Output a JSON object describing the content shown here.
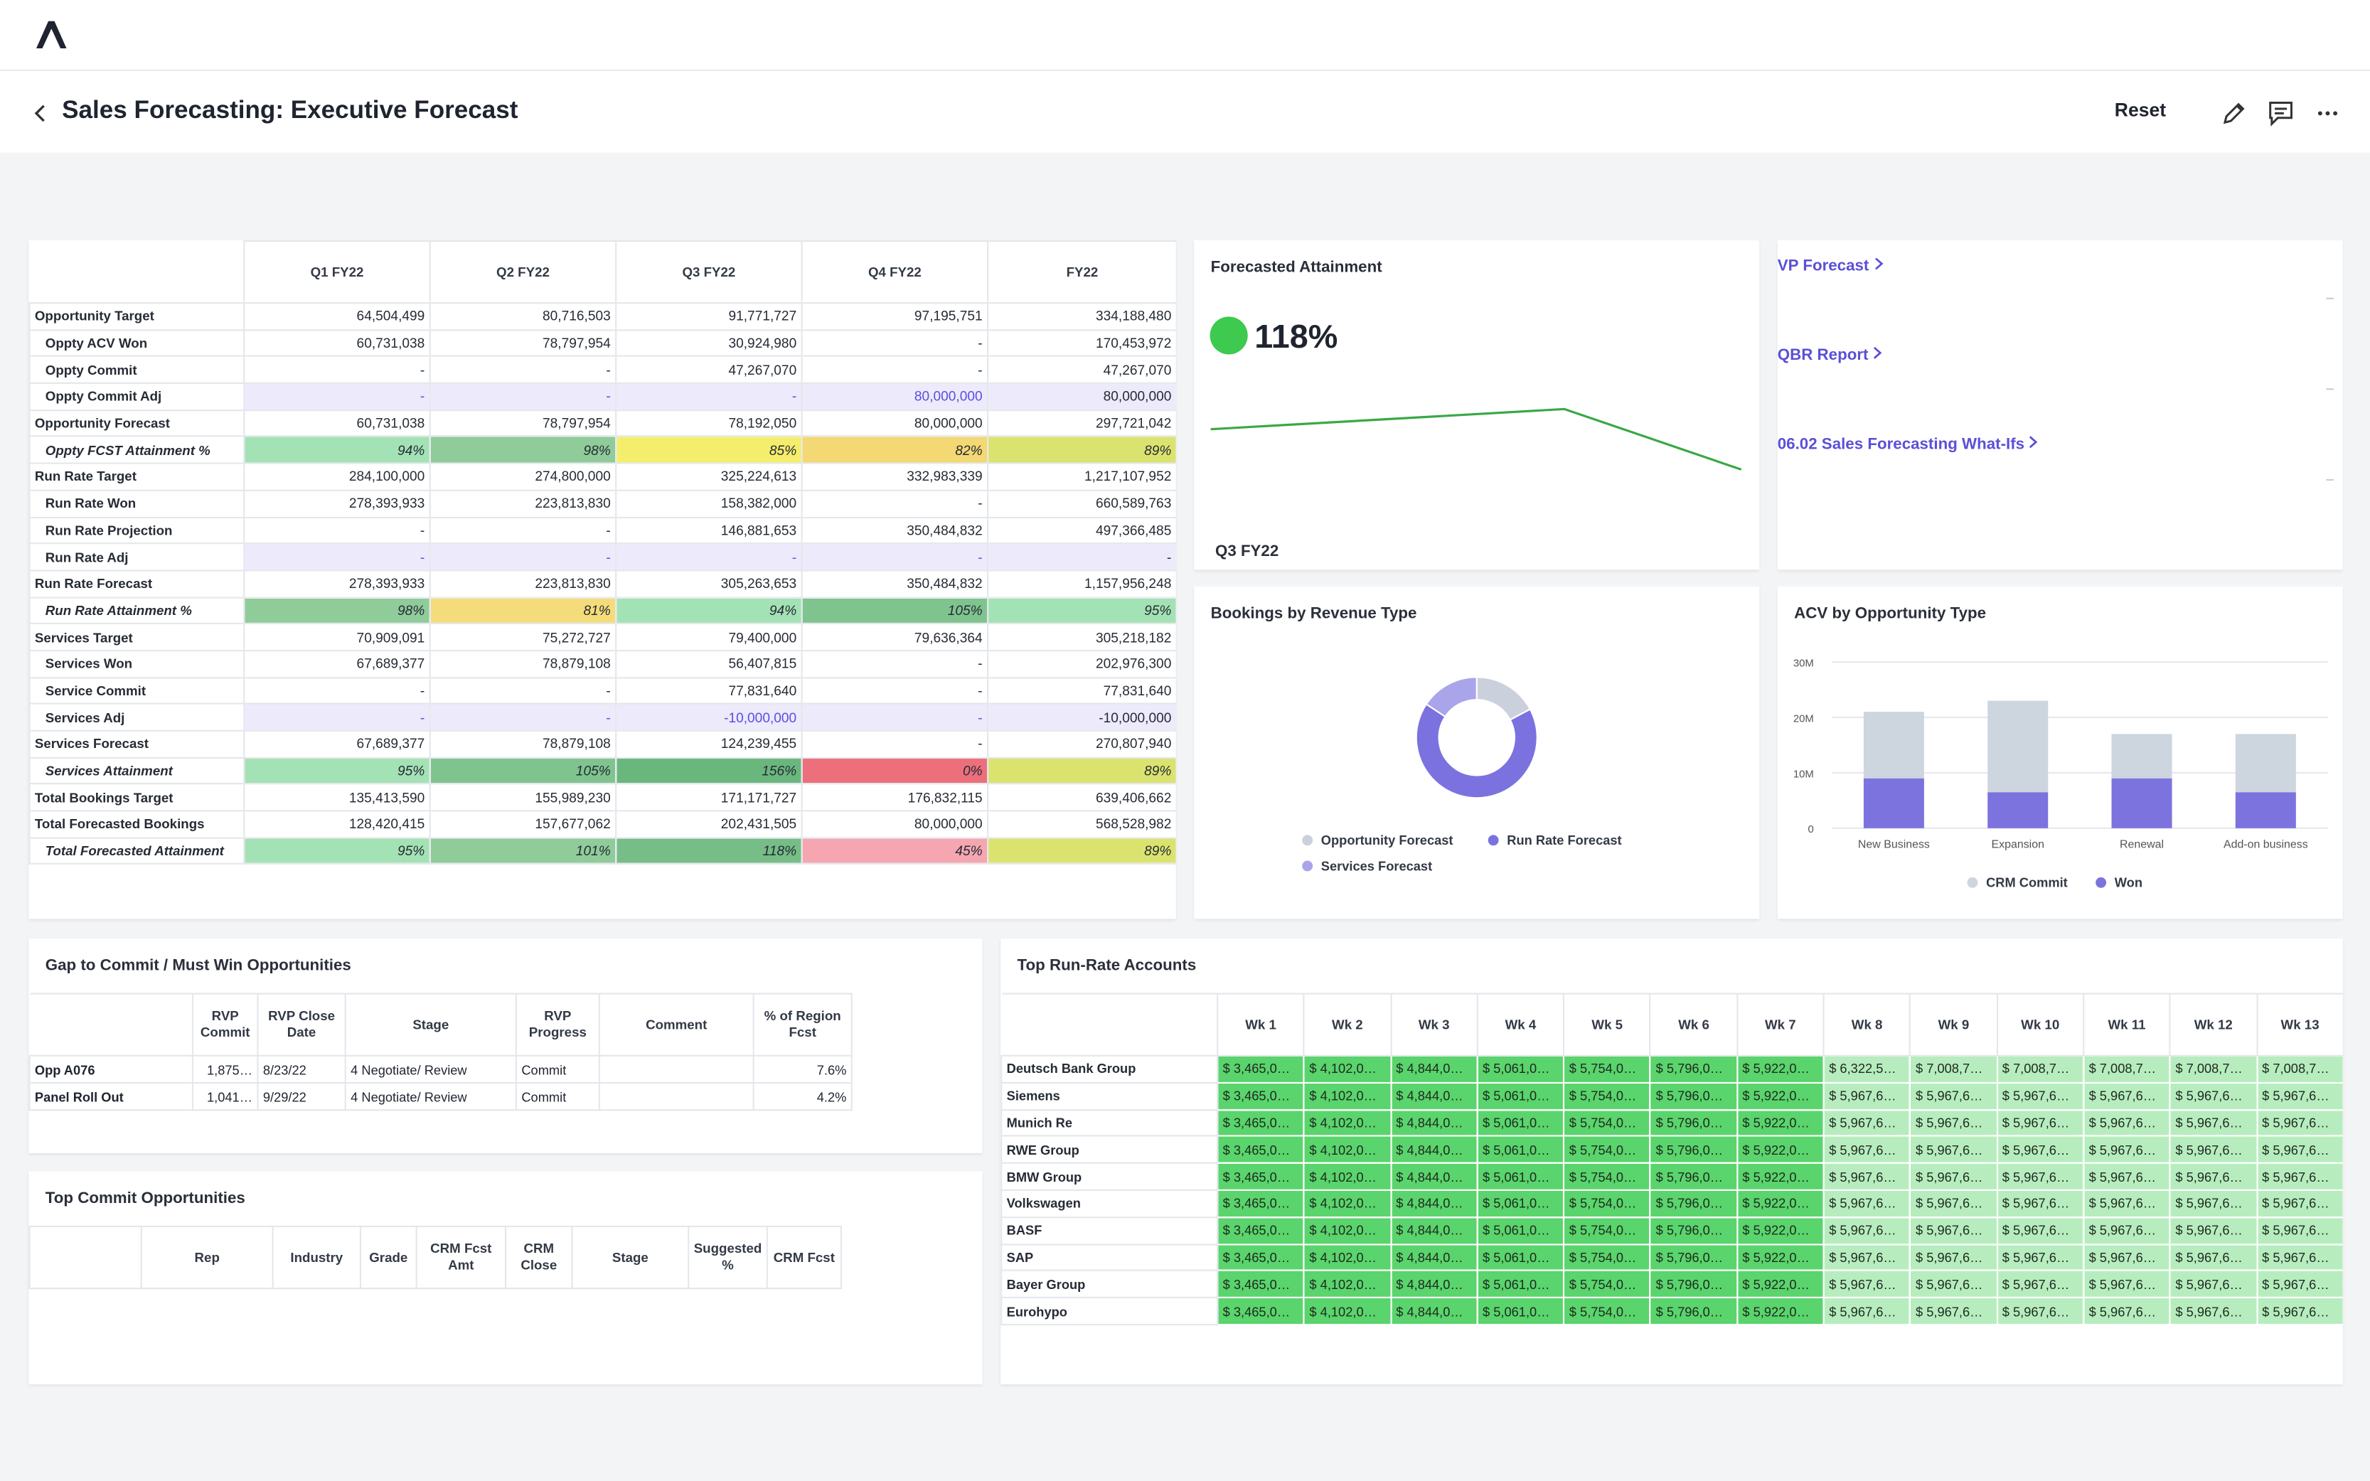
{
  "header": {
    "title": "Sales Forecasting: Executive Forecast",
    "reset": "Reset"
  },
  "forecast_table": {
    "columns": [
      "Q1 FY22",
      "Q2 FY22",
      "Q3 FY22",
      "Q4 FY22",
      "FY22"
    ],
    "rows": [
      {
        "label": "Opportunity Target",
        "style": "bold",
        "cells": [
          "64,504,499",
          "80,716,503",
          "91,771,727",
          "97,195,751",
          "334,188,480"
        ]
      },
      {
        "label": "Oppty ACV Won",
        "style": "sub",
        "cells": [
          "60,731,038",
          "78,797,954",
          "30,924,980",
          "-",
          "170,453,972"
        ]
      },
      {
        "label": "Oppty Commit",
        "style": "sub",
        "cells": [
          "-",
          "-",
          "47,267,070",
          "-",
          "47,267,070"
        ]
      },
      {
        "label": "Oppty Commit Adj",
        "style": "adj",
        "cells": [
          "-",
          "-",
          "-",
          "80,000,000",
          "80,000,000"
        ]
      },
      {
        "label": "Opportunity Forecast",
        "style": "bold",
        "cells": [
          "60,731,038",
          "78,797,954",
          "78,192,050",
          "80,000,000",
          "297,721,042"
        ]
      },
      {
        "label": "Oppty FCST Attainment %",
        "style": "pct",
        "cells": [
          "94%",
          "98%",
          "85%",
          "82%",
          "89%"
        ],
        "colors": [
          "#a3e2b4",
          "#8fcc9a",
          "#f4ee6c",
          "#f3d873",
          "#dbe36f"
        ]
      },
      {
        "label": "Run Rate Target",
        "style": "bold",
        "cells": [
          "284,100,000",
          "274,800,000",
          "325,224,613",
          "332,983,339",
          "1,217,107,952"
        ]
      },
      {
        "label": "Run Rate Won",
        "style": "sub",
        "cells": [
          "278,393,933",
          "223,813,830",
          "158,382,000",
          "-",
          "660,589,763"
        ]
      },
      {
        "label": "Run Rate Projection",
        "style": "sub",
        "cells": [
          "-",
          "-",
          "146,881,653",
          "350,484,832",
          "497,366,485"
        ]
      },
      {
        "label": "Run Rate Adj",
        "style": "adj",
        "cells": [
          "-",
          "-",
          "-",
          "-",
          "-"
        ]
      },
      {
        "label": "Run Rate Forecast",
        "style": "bold",
        "cells": [
          "278,393,933",
          "223,813,830",
          "305,263,653",
          "350,484,832",
          "1,157,956,248"
        ]
      },
      {
        "label": "Run Rate Attainment %",
        "style": "pct",
        "cells": [
          "98%",
          "81%",
          "94%",
          "105%",
          "95%"
        ],
        "colors": [
          "#8fcc9a",
          "#f5dc7a",
          "#a3e2b4",
          "#7fc48f",
          "#a3e2b4"
        ]
      },
      {
        "label": "Services Target",
        "style": "bold",
        "cells": [
          "70,909,091",
          "75,272,727",
          "79,400,000",
          "79,636,364",
          "305,218,182"
        ]
      },
      {
        "label": "Services Won",
        "style": "sub",
        "cells": [
          "67,689,377",
          "78,879,108",
          "56,407,815",
          "-",
          "202,976,300"
        ]
      },
      {
        "label": "Service Commit",
        "style": "sub",
        "cells": [
          "-",
          "-",
          "77,831,640",
          "-",
          "77,831,640"
        ]
      },
      {
        "label": "Services Adj",
        "style": "adj",
        "cells": [
          "-",
          "-",
          "-10,000,000",
          "-",
          "-10,000,000"
        ]
      },
      {
        "label": "Services Forecast",
        "style": "bold",
        "cells": [
          "67,689,377",
          "78,879,108",
          "124,239,455",
          "-",
          "270,807,940"
        ]
      },
      {
        "label": "Services Attainment",
        "style": "pct",
        "cells": [
          "95%",
          "105%",
          "156%",
          "0%",
          "89%"
        ],
        "colors": [
          "#a3e2b4",
          "#7fc48f",
          "#6ab77e",
          "#ec6f7b",
          "#dbe36f"
        ]
      },
      {
        "label": "Total Bookings Target",
        "style": "bold",
        "cells": [
          "135,413,590",
          "155,989,230",
          "171,171,727",
          "176,832,115",
          "639,406,662"
        ]
      },
      {
        "label": "Total Forecasted Bookings",
        "style": "bold",
        "cells": [
          "128,420,415",
          "157,677,062",
          "202,431,505",
          "80,000,000",
          "568,528,982"
        ]
      },
      {
        "label": "Total Forecasted Attainment",
        "style": "pct",
        "cells": [
          "95%",
          "101%",
          "118%",
          "45%",
          "89%"
        ],
        "colors": [
          "#a3e2b4",
          "#8fcc9a",
          "#76bd87",
          "#f5a6b0",
          "#dbe36f"
        ]
      }
    ]
  },
  "chart_data": [
    {
      "type": "line",
      "title": "Forecasted Attainment",
      "kpi": "118%",
      "kpi_color": "#3ec94f",
      "x_label": "Q3 FY22",
      "values": [
        97,
        102,
        107,
        77
      ],
      "ylim": [
        70,
        115
      ],
      "color": "#3aa845"
    },
    {
      "type": "pie",
      "title": "Bookings by Revenue Type",
      "donut": true,
      "categories": [
        "Opportunity Forecast",
        "Run Rate Forecast",
        "Services Forecast"
      ],
      "values": [
        297721042,
        1157956248,
        270807940
      ],
      "colors": [
        "#cad1dc",
        "#7b72e0",
        "#aaa4ea"
      ]
    },
    {
      "type": "bar",
      "title": "ACV by Opportunity Type",
      "stacked": true,
      "grid": true,
      "categories": [
        "New Business",
        "Expansion",
        "Renewal",
        "Add-on business"
      ],
      "series": [
        {
          "name": "CRM Commit",
          "color": "#cdd5de",
          "values": [
            12000000,
            16500000,
            8000000,
            10500000
          ]
        },
        {
          "name": "Won",
          "color": "#7d73de",
          "values": [
            9000000,
            6500000,
            9000000,
            6500000
          ]
        }
      ],
      "ylim": [
        0,
        30000000
      ],
      "yticks": [
        0,
        {
          "value": 10000000,
          "label": "10M"
        },
        {
          "value": 20000000,
          "label": "20M"
        },
        {
          "value": 30000000,
          "label": "30M"
        }
      ]
    }
  ],
  "links": [
    "VP Forecast",
    "QBR Report",
    "06.02 Sales Forecasting What-Ifs"
  ],
  "gap_table": {
    "title": "Gap to Commit / Must Win Opportunities",
    "columns": [
      "RVP Commit",
      "RVP Close Date",
      "Stage",
      "RVP Progress",
      "Comment",
      "% of Region Fcst"
    ],
    "rows": [
      {
        "label": "Opp A076",
        "cells": [
          "1,875…",
          "8/23/22",
          "4 Negotiate/ Review",
          "Commit",
          null,
          "7.6%"
        ]
      },
      {
        "label": "Panel Roll Out",
        "cells": [
          "1,041…",
          "9/29/22",
          "4 Negotiate/ Review",
          "Commit",
          null,
          "4.2%"
        ]
      }
    ]
  },
  "commit_table": {
    "title": "Top Commit Opportunities",
    "columns": [
      null,
      "Rep",
      "Industry",
      "Grade",
      "CRM Fcst Amt",
      "CRM Close",
      "Stage",
      "Suggested %",
      "CRM Fcst"
    ]
  },
  "runrate_table": {
    "title": "Top Run-Rate Accounts",
    "columns": [
      "Wk 1",
      "Wk 2",
      "Wk 3",
      "Wk 4",
      "Wk 5",
      "Wk 6",
      "Wk 7",
      "Wk 8",
      "Wk 9",
      "Wk 10",
      "Wk 11",
      "Wk 12",
      "Wk 13"
    ],
    "column_colors": [
      "#5ad46c",
      "#5ad46c",
      "#5ad46c",
      "#5ad46c",
      "#5ad46c",
      "#5ad46c",
      "#5ad46c",
      "#b7edbe",
      "#b7edbe",
      "#b7edbe",
      "#b7edbe",
      "#b7edbe",
      "#b7edbe"
    ],
    "rows": [
      {
        "label": "Deutsch Bank Group",
        "cells": [
          "$ 3,465,0…",
          "$ 4,102,0…",
          "$ 4,844,0…",
          "$ 5,061,0…",
          "$ 5,754,0…",
          "$ 5,796,0…",
          "$ 5,922,0…",
          "$ 6,322,5…",
          "$ 7,008,7…",
          "$ 7,008,7…",
          "$ 7,008,7…",
          "$ 7,008,7…",
          "$ 7,008,7…"
        ]
      },
      {
        "label": "Siemens",
        "cells": [
          "$ 3,465,0…",
          "$ 4,102,0…",
          "$ 4,844,0…",
          "$ 5,061,0…",
          "$ 5,754,0…",
          "$ 5,796,0…",
          "$ 5,922,0…",
          "$ 5,967,6…",
          "$ 5,967,6…",
          "$ 5,967,6…",
          "$ 5,967,6…",
          "$ 5,967,6…",
          "$ 5,967,6…"
        ]
      },
      {
        "label": "Munich Re",
        "cells": [
          "$ 3,465,0…",
          "$ 4,102,0…",
          "$ 4,844,0…",
          "$ 5,061,0…",
          "$ 5,754,0…",
          "$ 5,796,0…",
          "$ 5,922,0…",
          "$ 5,967,6…",
          "$ 5,967,6…",
          "$ 5,967,6…",
          "$ 5,967,6…",
          "$ 5,967,6…",
          "$ 5,967,6…"
        ]
      },
      {
        "label": "RWE Group",
        "cells": [
          "$ 3,465,0…",
          "$ 4,102,0…",
          "$ 4,844,0…",
          "$ 5,061,0…",
          "$ 5,754,0…",
          "$ 5,796,0…",
          "$ 5,922,0…",
          "$ 5,967,6…",
          "$ 5,967,6…",
          "$ 5,967,6…",
          "$ 5,967,6…",
          "$ 5,967,6…",
          "$ 5,967,6…"
        ]
      },
      {
        "label": "BMW Group",
        "cells": [
          "$ 3,465,0…",
          "$ 4,102,0…",
          "$ 4,844,0…",
          "$ 5,061,0…",
          "$ 5,754,0…",
          "$ 5,796,0…",
          "$ 5,922,0…",
          "$ 5,967,6…",
          "$ 5,967,6…",
          "$ 5,967,6…",
          "$ 5,967,6…",
          "$ 5,967,6…",
          "$ 5,967,6…"
        ]
      },
      {
        "label": "Volkswagen",
        "cells": [
          "$ 3,465,0…",
          "$ 4,102,0…",
          "$ 4,844,0…",
          "$ 5,061,0…",
          "$ 5,754,0…",
          "$ 5,796,0…",
          "$ 5,922,0…",
          "$ 5,967,6…",
          "$ 5,967,6…",
          "$ 5,967,6…",
          "$ 5,967,6…",
          "$ 5,967,6…",
          "$ 5,967,6…"
        ]
      },
      {
        "label": "BASF",
        "cells": [
          "$ 3,465,0…",
          "$ 4,102,0…",
          "$ 4,844,0…",
          "$ 5,061,0…",
          "$ 5,754,0…",
          "$ 5,796,0…",
          "$ 5,922,0…",
          "$ 5,967,6…",
          "$ 5,967,6…",
          "$ 5,967,6…",
          "$ 5,967,6…",
          "$ 5,967,6…",
          "$ 5,967,6…"
        ]
      },
      {
        "label": "SAP",
        "cells": [
          "$ 3,465,0…",
          "$ 4,102,0…",
          "$ 4,844,0…",
          "$ 5,061,0…",
          "$ 5,754,0…",
          "$ 5,796,0…",
          "$ 5,922,0…",
          "$ 5,967,6…",
          "$ 5,967,6…",
          "$ 5,967,6…",
          "$ 5,967,6…",
          "$ 5,967,6…",
          "$ 5,967,6…"
        ]
      },
      {
        "label": "Bayer Group",
        "cells": [
          "$ 3,465,0…",
          "$ 4,102,0…",
          "$ 4,844,0…",
          "$ 5,061,0…",
          "$ 5,754,0…",
          "$ 5,796,0…",
          "$ 5,922,0…",
          "$ 5,967,6…",
          "$ 5,967,6…",
          "$ 5,967,6…",
          "$ 5,967,6…",
          "$ 5,967,6…",
          "$ 5,967,6…"
        ]
      },
      {
        "label": "Eurohypo",
        "cells": [
          "$ 3,465,0…",
          "$ 4,102,0…",
          "$ 4,844,0…",
          "$ 5,061,0…",
          "$ 5,754,0…",
          "$ 5,796,0…",
          "$ 5,922,0…",
          "$ 5,967,6…",
          "$ 5,967,6…",
          "$ 5,967,6…",
          "$ 5,967,6…",
          "$ 5,967,6…",
          "$ 5,967,6…"
        ]
      }
    ]
  }
}
